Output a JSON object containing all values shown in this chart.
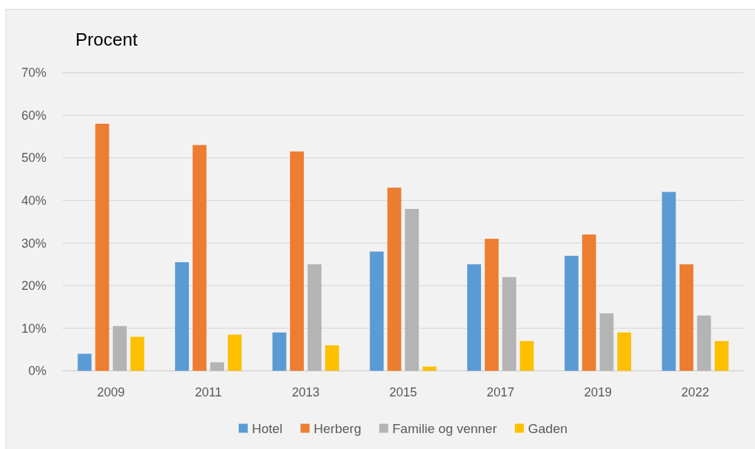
{
  "chart_data": {
    "type": "bar",
    "ylabel": "Procent",
    "categories": [
      "2009",
      "2011",
      "2013",
      "2015",
      "2017",
      "2019",
      "2022"
    ],
    "series": [
      {
        "name": "Hotel",
        "color": "#5b9bd5",
        "values": [
          4,
          25.5,
          9,
          28,
          25,
          27,
          42
        ]
      },
      {
        "name": "Herberg",
        "color": "#ed7d31",
        "values": [
          58,
          53,
          51.5,
          43,
          31,
          32,
          25
        ]
      },
      {
        "name": "Familie og venner",
        "color": "#b4b4b4",
        "values": [
          10.5,
          2,
          25,
          38,
          22,
          13.5,
          13
        ]
      },
      {
        "name": "Gaden",
        "color": "#ffc000",
        "values": [
          8,
          8.5,
          6,
          1,
          7,
          9,
          7
        ]
      }
    ],
    "ylim": [
      0,
      70
    ],
    "yticks": [
      {
        "value": 0,
        "label": "0%"
      },
      {
        "value": 10,
        "label": "10%"
      },
      {
        "value": 20,
        "label": "20%"
      },
      {
        "value": 30,
        "label": "30%"
      },
      {
        "value": 40,
        "label": "40%"
      },
      {
        "value": 50,
        "label": "50%"
      },
      {
        "value": 60,
        "label": "60%"
      },
      {
        "value": 70,
        "label": "70%"
      }
    ],
    "grid": "y",
    "legend": "bottom"
  }
}
